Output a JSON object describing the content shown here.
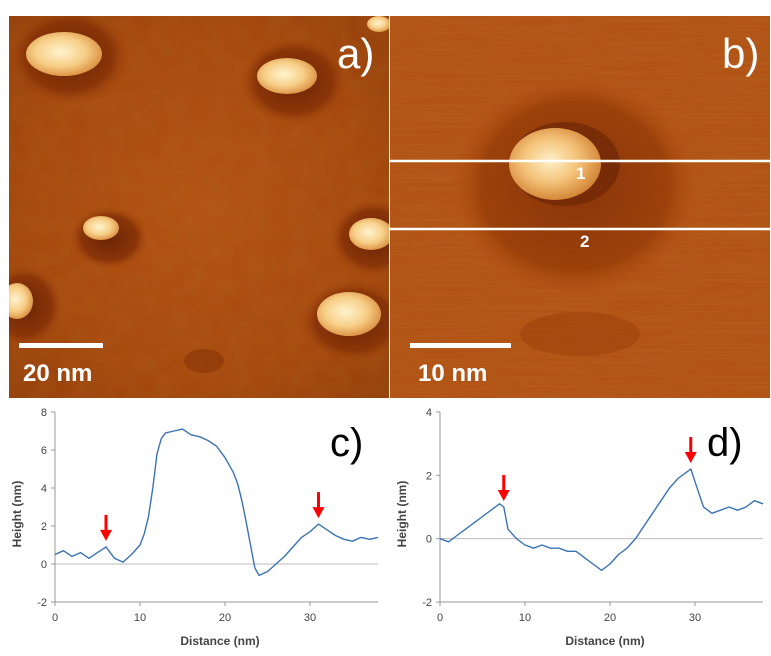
{
  "panels": {
    "a": {
      "label": "a)",
      "scalebar": "20 nm"
    },
    "b": {
      "label": "b)",
      "scalebar": "10 nm",
      "line_labels": [
        "1",
        "2"
      ]
    },
    "c": {
      "label": "c)"
    },
    "d": {
      "label": "d)"
    }
  },
  "colors": {
    "afm_dark": "#7a2c06",
    "afm_mid": "#b5520f",
    "afm_bright": "#ffe6b0",
    "trace": "#3a73b5",
    "arrow": "#ff0000"
  },
  "chart_data": [
    {
      "panel": "c)",
      "type": "line",
      "xlabel": "Distance (nm)",
      "ylabel": "Height (nm)",
      "xlim": [
        0,
        38
      ],
      "ylim": [
        -2,
        8
      ],
      "xticks": [
        0,
        10,
        20,
        30
      ],
      "yticks": [
        -2,
        0,
        2,
        4,
        6,
        8
      ],
      "x": [
        0,
        1,
        2,
        3,
        4,
        5,
        6,
        7,
        8,
        9,
        10,
        10.5,
        11,
        11.5,
        12,
        12.5,
        13,
        14,
        15,
        16,
        17,
        18,
        19,
        20,
        20.5,
        21,
        21.5,
        22,
        22.5,
        23,
        23.5,
        24,
        25,
        26,
        27,
        28,
        29,
        30,
        31,
        32,
        33,
        34,
        35,
        36,
        37,
        38
      ],
      "y": [
        0.5,
        0.7,
        0.4,
        0.6,
        0.3,
        0.6,
        0.9,
        0.3,
        0.1,
        0.5,
        1.0,
        1.6,
        2.5,
        4.0,
        5.8,
        6.6,
        6.9,
        7.0,
        7.1,
        6.8,
        6.7,
        6.5,
        6.2,
        5.6,
        5.2,
        4.8,
        4.2,
        3.3,
        2.2,
        1.0,
        -0.2,
        -0.6,
        -0.4,
        0.0,
        0.4,
        0.9,
        1.4,
        1.7,
        2.1,
        1.8,
        1.5,
        1.3,
        1.2,
        1.4,
        1.3,
        1.4
      ],
      "arrows_at_x": [
        6,
        31
      ]
    },
    {
      "panel": "d)",
      "type": "line",
      "xlabel": "Distance (nm)",
      "ylabel": "Height (nm)",
      "xlim": [
        0,
        38
      ],
      "ylim": [
        -2,
        4
      ],
      "xticks": [
        0,
        10,
        20,
        30
      ],
      "yticks": [
        -2,
        0,
        2,
        4
      ],
      "x": [
        0,
        1,
        2,
        3,
        4,
        5,
        6,
        7,
        7.5,
        8,
        9,
        10,
        11,
        12,
        13,
        14,
        15,
        16,
        17,
        18,
        19,
        20,
        21,
        22,
        23,
        24,
        25,
        26,
        27,
        28,
        29,
        29.5,
        30,
        31,
        32,
        33,
        34,
        35,
        36,
        37,
        38
      ],
      "y": [
        0.0,
        -0.1,
        0.1,
        0.3,
        0.5,
        0.7,
        0.9,
        1.1,
        1.0,
        0.3,
        0.0,
        -0.2,
        -0.3,
        -0.2,
        -0.3,
        -0.3,
        -0.4,
        -0.4,
        -0.6,
        -0.8,
        -1.0,
        -0.8,
        -0.5,
        -0.3,
        0.0,
        0.4,
        0.8,
        1.2,
        1.6,
        1.9,
        2.1,
        2.2,
        1.8,
        1.0,
        0.8,
        0.9,
        1.0,
        0.9,
        1.0,
        1.2,
        1.1
      ],
      "arrows_at_x": [
        7.5,
        29.5
      ]
    }
  ]
}
